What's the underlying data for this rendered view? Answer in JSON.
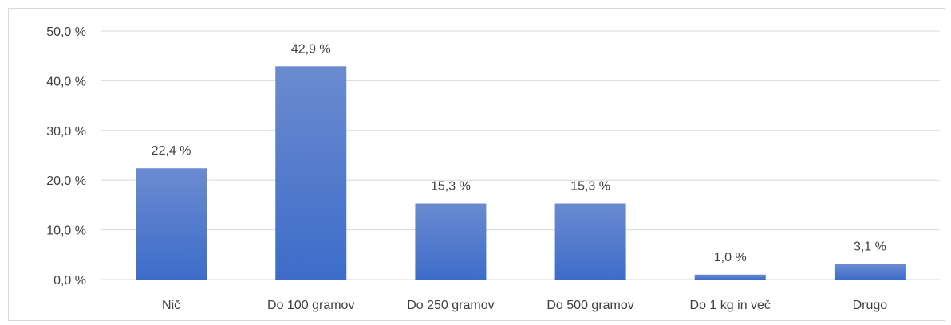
{
  "chart_data": {
    "type": "bar",
    "categories": [
      "Nič",
      "Do 100 gramov",
      "Do 250 gramov",
      "Do 500 gramov",
      "Do 1 kg in več",
      "Drugo"
    ],
    "values": [
      22.4,
      42.9,
      15.3,
      15.3,
      1.0,
      3.1
    ],
    "data_labels": [
      "22,4 %",
      "42,9 %",
      "15,3 %",
      "15,3 %",
      "1,0 %",
      "3,1 %"
    ],
    "y_ticks": [
      0,
      10,
      20,
      30,
      40,
      50
    ],
    "y_tick_labels": [
      "0,0 %",
      "10,0 %",
      "20,0 %",
      "30,0 %",
      "40,0 %",
      "50,0 %"
    ],
    "ylim": [
      0,
      50
    ],
    "grid": true,
    "legend": "none",
    "colors": {
      "bar_top": "#6b8bd0",
      "bar_bottom": "#3d6cc9",
      "grid": "#d9d9d9",
      "text": "#404040"
    }
  }
}
